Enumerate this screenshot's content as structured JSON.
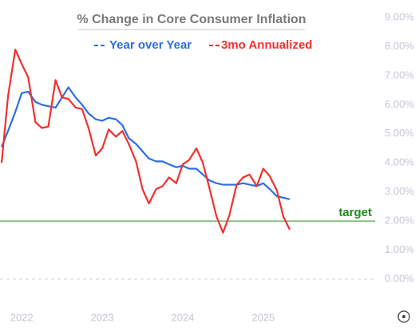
{
  "chart_data": {
    "type": "line",
    "title": "% Change in Core Consumer Inflation",
    "xlim": [
      2021.73,
      2026.39
    ],
    "xticks": [
      2022,
      2023,
      2024,
      2025
    ],
    "ylim": [
      0,
      9
    ],
    "yticks": [
      {
        "value": 0,
        "label": "0.00%"
      },
      {
        "value": 1,
        "label": "1.00%"
      },
      {
        "value": 2,
        "label": "2.00%"
      },
      {
        "value": 3,
        "label": "3.00%"
      },
      {
        "value": 4,
        "label": "4.00%"
      },
      {
        "value": 5,
        "label": "5.00%"
      },
      {
        "value": 6,
        "label": "6.00%"
      },
      {
        "value": 7,
        "label": "7.00%"
      },
      {
        "value": 8,
        "label": "8.00%"
      },
      {
        "value": 9,
        "label": "9.00%"
      }
    ],
    "zero_line_dashed": true,
    "target_line": {
      "value": 2,
      "label": "target",
      "color": "#1f8a22"
    },
    "x": [
      2021.75,
      2021.83,
      2021.92,
      2022,
      2022.08,
      2022.17,
      2022.25,
      2022.33,
      2022.42,
      2022.5,
      2022.58,
      2022.67,
      2022.75,
      2022.83,
      2022.92,
      2023,
      2023.08,
      2023.17,
      2023.25,
      2023.33,
      2023.42,
      2023.5,
      2023.58,
      2023.67,
      2023.75,
      2023.83,
      2023.92,
      2024,
      2024.08,
      2024.17,
      2024.25,
      2024.33,
      2024.42,
      2024.5,
      2024.58,
      2024.67,
      2024.75,
      2024.83,
      2024.92,
      2025,
      2025.08,
      2025.17,
      2025.25,
      2025.33
    ],
    "series": [
      {
        "name": "Year over Year",
        "color": "#2c6fe2",
        "values": [
          4.55,
          5.1,
          5.75,
          6.4,
          6.45,
          6.1,
          6.0,
          5.95,
          5.9,
          6.25,
          6.6,
          6.25,
          6.0,
          5.7,
          5.5,
          5.45,
          5.55,
          5.5,
          5.3,
          4.85,
          4.65,
          4.4,
          4.15,
          4.05,
          4.05,
          3.95,
          3.85,
          3.9,
          3.8,
          3.8,
          3.6,
          3.4,
          3.3,
          3.25,
          3.25,
          3.25,
          3.3,
          3.25,
          3.2,
          3.3,
          3.1,
          2.85,
          2.8,
          2.75
        ]
      },
      {
        "name": "3mo Annualized",
        "color": "#f2302e",
        "values": [
          4.0,
          6.3,
          7.9,
          7.4,
          6.95,
          5.4,
          5.2,
          5.25,
          6.85,
          6.25,
          6.2,
          5.9,
          5.85,
          5.2,
          4.25,
          4.5,
          5.15,
          4.9,
          5.1,
          4.65,
          4.05,
          3.1,
          2.6,
          3.1,
          3.2,
          3.5,
          3.3,
          3.95,
          4.1,
          4.5,
          4.0,
          3.15,
          2.15,
          1.6,
          2.2,
          3.25,
          3.5,
          3.6,
          3.2,
          3.8,
          3.55,
          3.05,
          2.15,
          1.7
        ]
      }
    ]
  }
}
